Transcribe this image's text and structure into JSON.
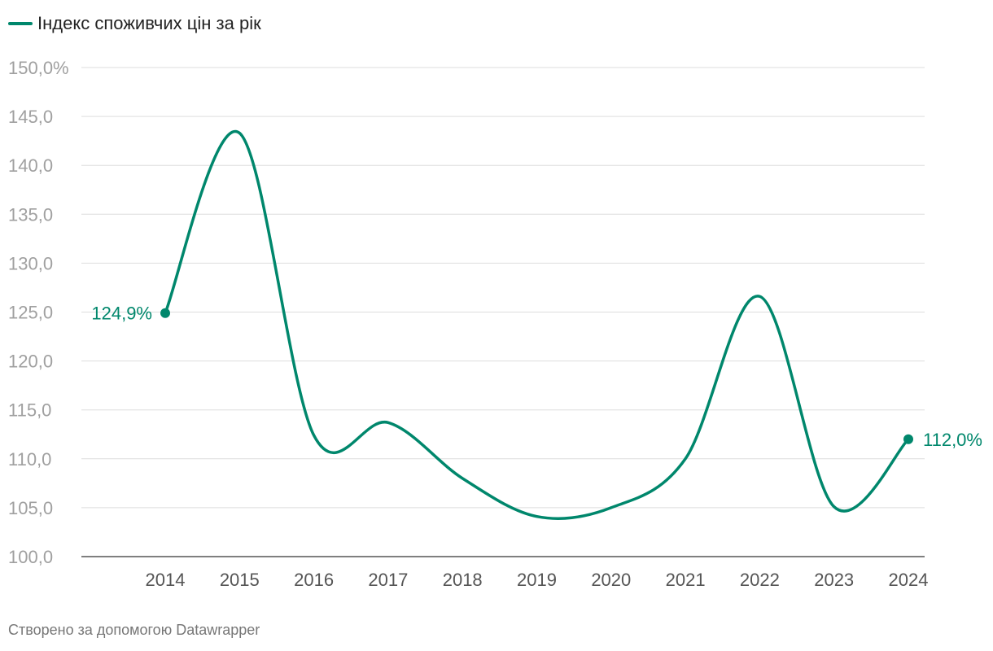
{
  "legend": {
    "label": "Індекс споживчих цін за рік",
    "color": "#00876c"
  },
  "credit": "Створено за допомогою Datawrapper",
  "chart_data": {
    "type": "line",
    "title": "",
    "xlabel": "",
    "ylabel": "",
    "x": [
      "2014",
      "2015",
      "2016",
      "2017",
      "2018",
      "2019",
      "2020",
      "2021",
      "2022",
      "2023",
      "2024"
    ],
    "series": [
      {
        "name": "Індекс споживчих цін за рік",
        "color": "#00876c",
        "values": [
          124.9,
          143.3,
          112.4,
          113.7,
          108.0,
          104.1,
          105.0,
          110.0,
          126.6,
          105.1,
          112.0
        ]
      }
    ],
    "ylim": [
      100,
      150
    ],
    "yticks": [
      100,
      105,
      110,
      115,
      120,
      125,
      130,
      135,
      140,
      145,
      150
    ],
    "ytick_labels": [
      "100,0",
      "105,0",
      "110,0",
      "115,0",
      "120,0",
      "125,0",
      "130,0",
      "135,0",
      "140,0",
      "145,0",
      "150,0%"
    ],
    "grid": true,
    "legend_position": "top-left",
    "annotations": [
      {
        "index": 0,
        "text": "124,9%",
        "side": "left"
      },
      {
        "index": 10,
        "text": "112,0%",
        "side": "right"
      }
    ]
  }
}
